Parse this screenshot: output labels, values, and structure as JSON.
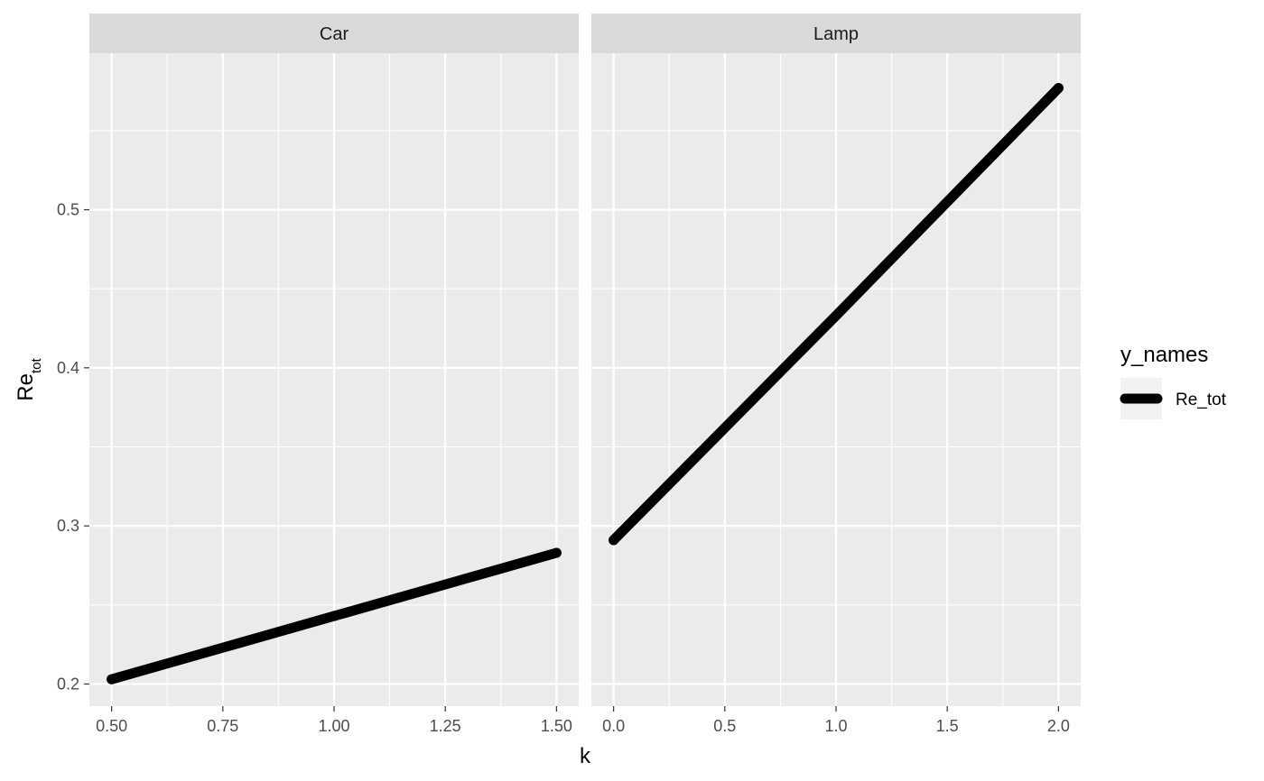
{
  "chart_data": {
    "type": "line",
    "xlabel": "k",
    "ylabel": {
      "main": "Re",
      "subscript": "tot"
    },
    "ylim": [
      0.186,
      0.599
    ],
    "y_ticks": [
      0.2,
      0.3,
      0.4,
      0.5
    ],
    "y_tick_labels": [
      "0.2",
      "0.3",
      "0.4",
      "0.5"
    ],
    "grid": true,
    "legend": {
      "title": "y_names",
      "position": "right",
      "entries": [
        {
          "label": "Re_tot",
          "color": "#000000"
        }
      ]
    },
    "panels": [
      {
        "strip": "Car",
        "xlim": [
          0.45,
          1.55
        ],
        "x_ticks": [
          0.5,
          0.75,
          1.0,
          1.25,
          1.5
        ],
        "x_tick_labels": [
          "0.50",
          "0.75",
          "1.00",
          "1.25",
          "1.50"
        ],
        "series": [
          {
            "name": "Re_tot",
            "x": [
              0.5,
              1.0,
              1.5
            ],
            "y": [
              0.203,
              0.243,
              0.283
            ]
          }
        ]
      },
      {
        "strip": "Lamp",
        "xlim": [
          -0.1,
          2.1
        ],
        "x_ticks": [
          0.0,
          0.5,
          1.0,
          1.5,
          2.0
        ],
        "x_tick_labels": [
          "0.0",
          "0.5",
          "1.0",
          "1.5",
          "2.0"
        ],
        "series": [
          {
            "name": "Re_tot",
            "x": [
              0.0,
              1.0,
              2.0
            ],
            "y": [
              0.291,
              0.433,
              0.577
            ]
          }
        ]
      }
    ],
    "colors": {
      "panel_background": "#ebebeb",
      "strip_background": "#d9d9d9",
      "grid": "#ffffff",
      "line": "#000000"
    }
  }
}
